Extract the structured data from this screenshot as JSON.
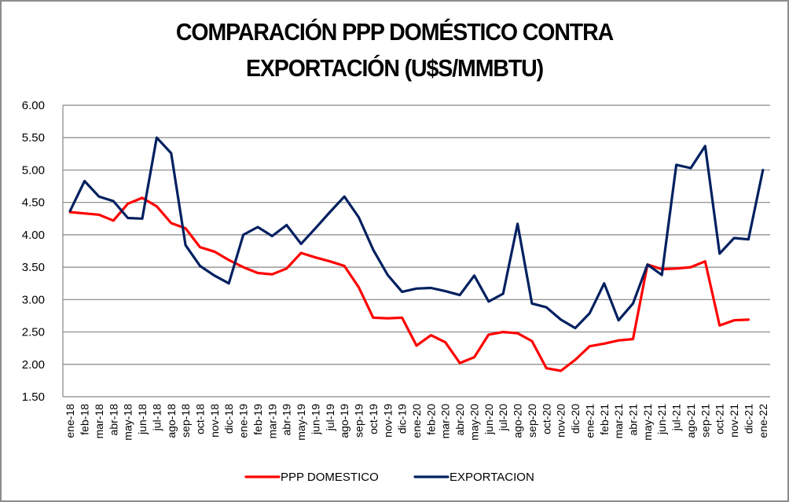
{
  "chart_data": {
    "type": "line",
    "title_lines": [
      "COMPARACIÓN PPP DOMÉSTICO CONTRA",
      "EXPORTACIÓN (U$S/MMBTU)"
    ],
    "xlabel": "",
    "ylabel": "",
    "ylim": [
      1.5,
      6.0
    ],
    "yticks": [
      "6.00",
      "5.50",
      "5.00",
      "4.50",
      "4.00",
      "3.50",
      "3.00",
      "2.50",
      "2.00",
      "1.50"
    ],
    "grid": true,
    "legend_position": "bottom",
    "categories": [
      "ene-18",
      "feb-18",
      "mar-18",
      "abr-18",
      "may-18",
      "jun-18",
      "jul-18",
      "ago-18",
      "sep-18",
      "oct-18",
      "nov-18",
      "dic-18",
      "ene-19",
      "feb-19",
      "mar-19",
      "abr-19",
      "may-19",
      "jun-19",
      "jul-19",
      "ago-19",
      "sep-19",
      "oct-19",
      "nov-19",
      "dic-19",
      "ene-20",
      "feb-20",
      "mar-20",
      "abr-20",
      "may-20",
      "jun-20",
      "jul-20",
      "ago-20",
      "sep-20",
      "oct-20",
      "nov-20",
      "dic-20",
      "ene-21",
      "feb-21",
      "mar-21",
      "abr-21",
      "may-21",
      "jun-21",
      "jul-21",
      "ago-21",
      "sep-21",
      "oct-21",
      "nov-21",
      "dic-21",
      "ene-22"
    ],
    "series": [
      {
        "name": "PPP DOMESTICO",
        "color": "#ff0000",
        "values": [
          4.35,
          4.33,
          4.31,
          4.22,
          4.48,
          4.57,
          4.44,
          4.18,
          4.1,
          3.81,
          3.74,
          3.61,
          3.5,
          3.41,
          3.39,
          3.48,
          3.72,
          3.65,
          3.59,
          3.52,
          3.19,
          2.72,
          2.71,
          2.72,
          2.29,
          2.45,
          2.34,
          2.02,
          2.11,
          2.46,
          2.5,
          2.48,
          2.36,
          1.94,
          1.9,
          2.07,
          2.28,
          2.32,
          2.37,
          2.39,
          3.54,
          3.47,
          3.48,
          3.5,
          3.59,
          2.6,
          2.68,
          2.69,
          null
        ]
      },
      {
        "name": "EXPORTACION",
        "color": "#002060",
        "values": [
          4.37,
          4.83,
          4.59,
          4.52,
          4.26,
          4.25,
          5.5,
          5.26,
          3.84,
          3.52,
          3.37,
          3.25,
          4.0,
          4.12,
          3.98,
          4.15,
          3.86,
          4.1,
          4.35,
          4.59,
          4.27,
          3.77,
          3.38,
          3.12,
          3.17,
          3.18,
          3.13,
          3.07,
          3.37,
          2.97,
          3.09,
          4.17,
          2.94,
          2.88,
          2.69,
          2.56,
          2.79,
          3.25,
          2.68,
          2.94,
          3.54,
          3.38,
          5.08,
          5.03,
          5.37,
          3.71,
          3.95,
          3.93,
          5.0
        ]
      }
    ]
  }
}
